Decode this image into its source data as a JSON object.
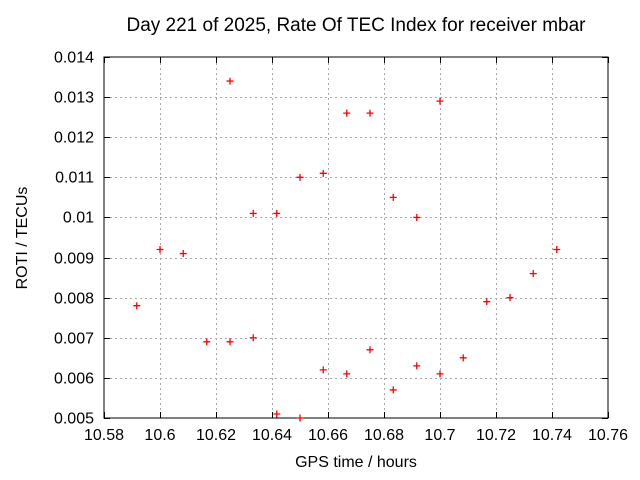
{
  "chart_data": {
    "type": "scatter",
    "title": "Day 221 of 2025, Rate Of TEC Index for receiver mbar",
    "xlabel": "GPS time / hours",
    "ylabel": "ROTI / TECUs",
    "xlim": [
      10.58,
      10.76
    ],
    "ylim": [
      0.005,
      0.014
    ],
    "xticks": [
      10.58,
      10.6,
      10.62,
      10.64,
      10.66,
      10.68,
      10.7,
      10.72,
      10.74,
      10.76
    ],
    "xtick_labels": [
      "10.58",
      "10.6",
      "10.62",
      "10.64",
      "10.66",
      "10.68",
      "10.7",
      "10.72",
      "10.74",
      "10.76"
    ],
    "yticks": [
      0.005,
      0.006,
      0.007,
      0.008,
      0.009,
      0.01,
      0.011,
      0.012,
      0.013,
      0.014
    ],
    "ytick_labels": [
      "0.005",
      "0.006",
      "0.007",
      "0.008",
      "0.009",
      "0.01",
      "0.011",
      "0.012",
      "0.013",
      "0.014"
    ],
    "grid": true,
    "legend": false,
    "marker": "plus",
    "series": [
      {
        "name": "ROTI",
        "points": [
          [
            10.5917,
            0.0078
          ],
          [
            10.6,
            0.0092
          ],
          [
            10.6083,
            0.0091
          ],
          [
            10.6167,
            0.0069
          ],
          [
            10.625,
            0.0134
          ],
          [
            10.625,
            0.0069
          ],
          [
            10.6333,
            0.0101
          ],
          [
            10.6333,
            0.007
          ],
          [
            10.6417,
            0.0101
          ],
          [
            10.6417,
            0.0051
          ],
          [
            10.65,
            0.011
          ],
          [
            10.65,
            0.005
          ],
          [
            10.6583,
            0.0111
          ],
          [
            10.6583,
            0.0062
          ],
          [
            10.6667,
            0.0126
          ],
          [
            10.6667,
            0.0061
          ],
          [
            10.675,
            0.0126
          ],
          [
            10.675,
            0.0067
          ],
          [
            10.6833,
            0.0105
          ],
          [
            10.6833,
            0.0057
          ],
          [
            10.6917,
            0.01
          ],
          [
            10.6917,
            0.0063
          ],
          [
            10.7,
            0.0129
          ],
          [
            10.7,
            0.0061
          ],
          [
            10.7083,
            0.0065
          ],
          [
            10.7167,
            0.0079
          ],
          [
            10.725,
            0.008
          ],
          [
            10.7333,
            0.0086
          ],
          [
            10.7417,
            0.0092
          ]
        ]
      }
    ]
  },
  "colors": {
    "marker": "#ff0000",
    "grid": "#a8a8a8",
    "axis": "#000000",
    "background": "#ffffff"
  }
}
